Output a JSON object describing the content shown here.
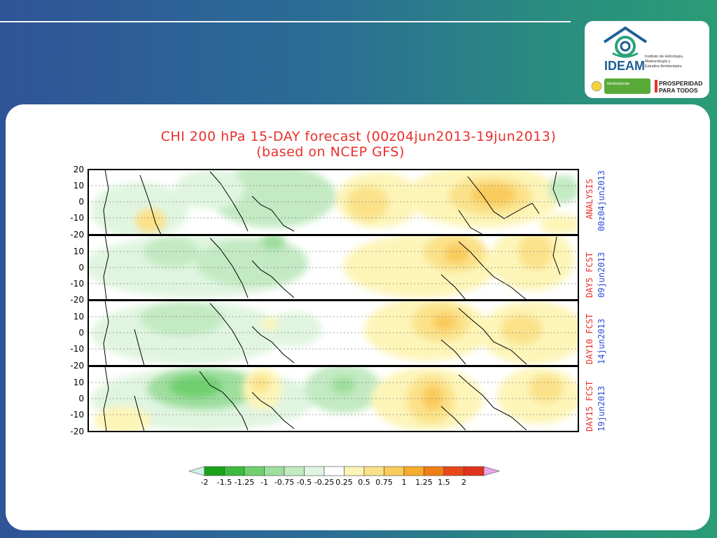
{
  "header": {
    "logo": {
      "name": "IDEAM",
      "subtitle_lines": [
        "Instituto de Hidrología,",
        "Meteorología y",
        "Estudios Ambientales"
      ],
      "ministry": "MinAmbiente",
      "slogan_lines": [
        "PROSPERIDAD",
        "PARA TODOS"
      ]
    }
  },
  "map": {
    "title_line1": "CHI 200 hPa 15-DAY forecast (00z04jun2013-19jun2013)",
    "title_line2": "(based on NCEP GFS)",
    "lat_ticks": [
      "20",
      "10",
      "0",
      "-10",
      "-20"
    ],
    "panels": [
      {
        "label": "ANALYSIS",
        "date": "00z04jun2013"
      },
      {
        "label": "DAY5 FCST",
        "date": "09jun2013"
      },
      {
        "label": "DAY10 FCST",
        "date": "14jun2013"
      },
      {
        "label": "DAY15 FCST",
        "date": "19jun2013"
      }
    ],
    "colorbar": {
      "labels": [
        "-2",
        "-1.5",
        "-1.25",
        "-1",
        "-0.75",
        "-0.5",
        "-0.25",
        "0.25",
        "0.5",
        "0.75",
        "1",
        "1.25",
        "1.5",
        "2"
      ],
      "colors": [
        "#1aa31a",
        "#3cbc3c",
        "#6fd06f",
        "#9ede9e",
        "#c3eac3",
        "#e0f5e0",
        "#ffffff",
        "#fdf5b8",
        "#fbe28a",
        "#f9cb5b",
        "#f6ac2c",
        "#f07e16",
        "#e8481a",
        "#e0331a"
      ],
      "under_color": "#d0f0ea",
      "over_color": "#e9a6e9"
    }
  }
}
